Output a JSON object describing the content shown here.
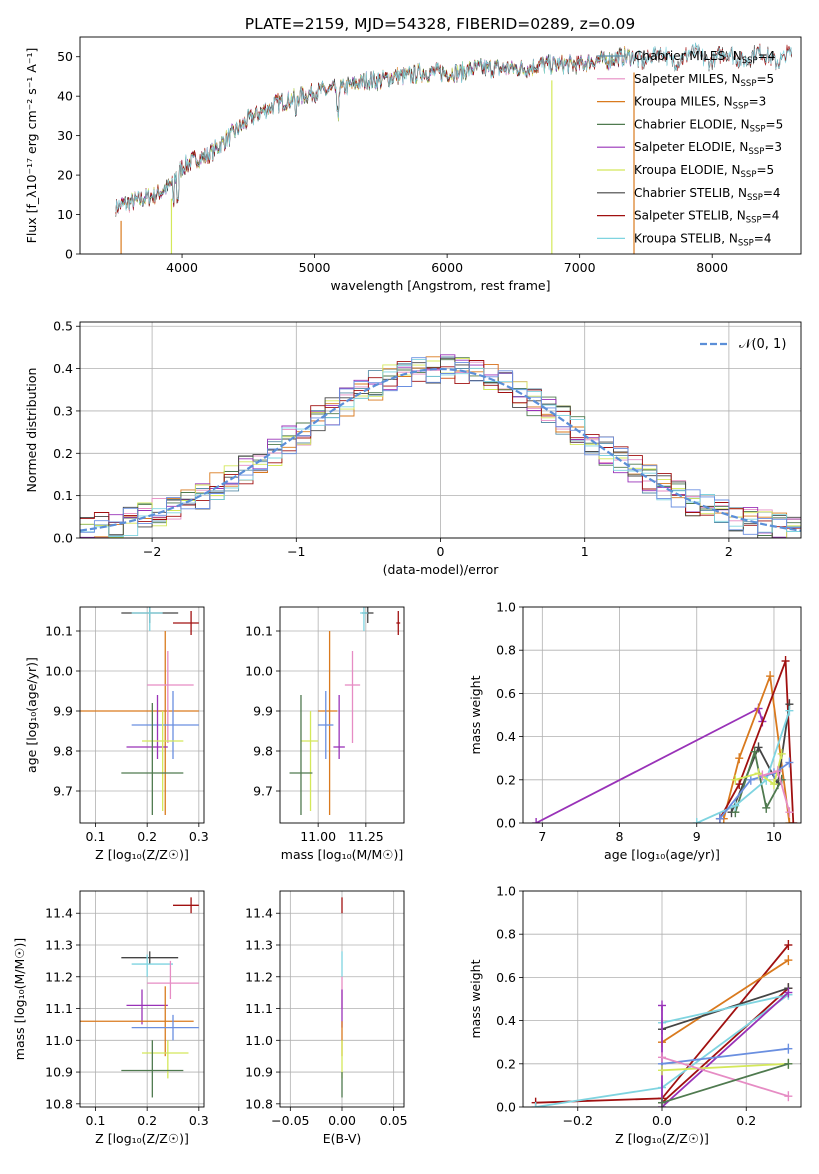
{
  "figure_title": "PLATE=2159, MJD=54328, FIBERID=0289, z=0.09",
  "colors": {
    "c1": "#5b8fa8",
    "c2": "#e68cc4",
    "c3": "#d97a1e",
    "c4": "#4f7a4f",
    "c5": "#9932b8",
    "c6": "#d4e85a",
    "c7": "#444444",
    "c8": "#a01010",
    "c9": "#7fd4e0",
    "c10": "#6a8fe0",
    "gauss": "#5b8fd8"
  },
  "chart_data": [
    {
      "id": "spectrum",
      "type": "line",
      "xlabel": "wavelength [Angstrom, rest frame]",
      "ylabel": "Flux [f_λ10⁻¹⁷ erg cm⁻² s⁻¹ A⁻¹]",
      "xlim": [
        3230,
        8670
      ],
      "ylim": [
        0,
        55
      ],
      "xticks": [
        4000,
        5000,
        6000,
        7000,
        8000
      ],
      "yticks": [
        0,
        10,
        20,
        30,
        40,
        50
      ],
      "grid": false,
      "legend_position": "top-right",
      "continuum": {
        "x": [
          3500,
          3600,
          3700,
          3800,
          3900,
          4000,
          4100,
          4200,
          4300,
          4400,
          4500,
          4600,
          4700,
          4800,
          4900,
          5000,
          5100,
          5200,
          5300,
          5400,
          5500,
          5600,
          5700,
          5800,
          5900,
          6000,
          6100,
          6200,
          6300,
          6400,
          6500,
          6600,
          6700,
          6800,
          6900,
          7000,
          7100,
          7200,
          7300,
          7400
        ],
        "y": [
          12,
          13,
          14,
          15,
          17,
          22,
          24,
          25,
          28,
          31,
          34,
          36,
          38,
          39,
          40,
          41,
          41.5,
          42,
          43,
          44,
          44,
          45,
          45,
          46,
          46,
          46,
          46,
          47,
          47,
          47,
          47,
          47,
          48,
          48,
          48,
          48,
          49,
          49,
          50,
          50
        ]
      },
      "series": [
        {
          "name": "Chabrier MILES, N_SSP=4",
          "color_key": "c1"
        },
        {
          "name": "Salpeter MILES, N_SSP=5",
          "color_key": "c2"
        },
        {
          "name": "Kroupa MILES, N_SSP=3",
          "color_key": "c3"
        },
        {
          "name": "Chabrier ELODIE, N_SSP=5",
          "color_key": "c4"
        },
        {
          "name": "Salpeter ELODIE, N_SSP=3",
          "color_key": "c5"
        },
        {
          "name": "Kroupa ELODIE, N_SSP=5",
          "color_key": "c6"
        },
        {
          "name": "Chabrier STELIB, N_SSP=4",
          "color_key": "c7"
        },
        {
          "name": "Salpeter STELIB, N_SSP=4",
          "color_key": "c8"
        },
        {
          "name": "Kroupa STELIB, N_SSP=4",
          "color_key": "c9"
        }
      ]
    },
    {
      "id": "residuals",
      "type": "bar",
      "xlabel": "(data-model)/error",
      "ylabel": "Normed distribution",
      "xlim": [
        -2.5,
        2.5
      ],
      "ylim": [
        0,
        0.51
      ],
      "xticks": [
        -2,
        -1,
        0,
        1,
        2
      ],
      "xtick_labels": [
        "−2",
        "−1",
        "0",
        "1",
        "2"
      ],
      "yticks": [
        0.0,
        0.1,
        0.2,
        0.3,
        0.4,
        0.5
      ],
      "ytick_labels": [
        "0.0",
        "0.1",
        "0.2",
        "0.3",
        "0.4",
        "0.5"
      ],
      "grid": true,
      "legend_position": "top-right",
      "legend_label": "𝒩(0, 1)",
      "bin_width": 0.1,
      "series_colors": [
        "c1",
        "c2",
        "c3",
        "c4",
        "c5",
        "c6",
        "c7",
        "c8",
        "c9",
        "c10"
      ]
    },
    {
      "id": "age_vs_Z",
      "type": "scatter",
      "xlabel": "Z [log₁₀(Z/Z☉)]",
      "ylabel": "age  [log₁₀(age/yr)]",
      "xlim": [
        0.07,
        0.31
      ],
      "ylim": [
        9.62,
        10.16
      ],
      "xticks": [
        0.1,
        0.2,
        0.3
      ],
      "xtick_labels": [
        "0.1",
        "0.2",
        "0.3"
      ],
      "yticks": [
        9.7,
        9.8,
        9.9,
        10.0,
        10.1
      ],
      "ytick_labels": [
        "9.7",
        "9.8",
        "9.9",
        "10.0",
        "10.1"
      ],
      "grid": true,
      "points": [
        {
          "x": 0.205,
          "y": 10.145,
          "xerr": [
            0.15,
            0.26
          ],
          "yerr": [
            10.12,
            10.16
          ],
          "c": "c7"
        },
        {
          "x": 0.205,
          "y": 10.145,
          "xerr": [
            0.17,
            0.23
          ],
          "yerr": [
            10.1,
            10.16
          ],
          "c": "c9"
        },
        {
          "x": 0.285,
          "y": 10.12,
          "xerr": [
            0.25,
            0.3
          ],
          "yerr": [
            10.09,
            10.15
          ],
          "c": "c8"
        },
        {
          "x": 0.235,
          "y": 9.9,
          "xerr": [
            0.07,
            0.3
          ],
          "yerr": [
            9.64,
            10.1
          ],
          "c": "c3"
        },
        {
          "x": 0.24,
          "y": 9.965,
          "xerr": [
            0.2,
            0.29
          ],
          "yerr": [
            9.82,
            10.05
          ],
          "c": "c2"
        },
        {
          "x": 0.25,
          "y": 9.865,
          "xerr": [
            0.17,
            0.3
          ],
          "yerr": [
            9.78,
            9.95
          ],
          "c": "c10"
        },
        {
          "x": 0.22,
          "y": 9.81,
          "xerr": [
            0.16,
            0.24
          ],
          "yerr": [
            9.78,
            9.94
          ],
          "c": "c5"
        },
        {
          "x": 0.23,
          "y": 9.825,
          "xerr": [
            0.19,
            0.27
          ],
          "yerr": [
            9.65,
            9.9
          ],
          "c": "c6"
        },
        {
          "x": 0.21,
          "y": 9.745,
          "xerr": [
            0.15,
            0.27
          ],
          "yerr": [
            9.64,
            9.92
          ],
          "c": "c4"
        }
      ]
    },
    {
      "id": "age_vs_mass",
      "type": "scatter",
      "xlabel": "mass [log₁₀(M/M☉)]",
      "ylabel": "",
      "xlim": [
        10.8,
        11.45
      ],
      "ylim": [
        9.62,
        10.16
      ],
      "xticks": [
        11.0,
        11.25
      ],
      "xtick_labels": [
        "11.00",
        "11.25"
      ],
      "yticks": [
        9.7,
        9.8,
        9.9,
        10.0,
        10.1
      ],
      "ytick_labels": [
        "9.7",
        "9.8",
        "9.9",
        "10.0",
        "10.1"
      ],
      "grid": true,
      "points": [
        {
          "x": 11.26,
          "y": 10.145,
          "xerr": [
            11.23,
            11.29
          ],
          "yerr": [
            10.12,
            10.16
          ],
          "c": "c7"
        },
        {
          "x": 11.24,
          "y": 10.145,
          "xerr": [
            11.22,
            11.26
          ],
          "yerr": [
            10.1,
            10.16
          ],
          "c": "c9"
        },
        {
          "x": 11.42,
          "y": 10.12,
          "xerr": [
            11.41,
            11.43
          ],
          "yerr": [
            10.09,
            10.15
          ],
          "c": "c8"
        },
        {
          "x": 11.06,
          "y": 9.9,
          "xerr": [
            11.0,
            11.1
          ],
          "yerr": [
            9.64,
            10.1
          ],
          "c": "c3"
        },
        {
          "x": 11.18,
          "y": 9.965,
          "xerr": [
            11.14,
            11.22
          ],
          "yerr": [
            9.82,
            10.05
          ],
          "c": "c2"
        },
        {
          "x": 11.04,
          "y": 9.865,
          "xerr": [
            11.0,
            11.08
          ],
          "yerr": [
            9.78,
            9.95
          ],
          "c": "c10"
        },
        {
          "x": 11.11,
          "y": 9.81,
          "xerr": [
            11.08,
            11.14
          ],
          "yerr": [
            9.78,
            9.94
          ],
          "c": "c5"
        },
        {
          "x": 10.96,
          "y": 9.825,
          "xerr": [
            10.91,
            11.0
          ],
          "yerr": [
            9.65,
            9.9
          ],
          "c": "c6"
        },
        {
          "x": 10.91,
          "y": 9.745,
          "xerr": [
            10.85,
            10.97
          ],
          "yerr": [
            9.64,
            9.94
          ],
          "c": "c4"
        }
      ]
    },
    {
      "id": "weight_vs_age",
      "type": "line",
      "xlabel": "age  [log₁₀(age/yr)]",
      "ylabel": "mass weight",
      "xlim": [
        6.75,
        10.35
      ],
      "ylim": [
        0,
        1.0
      ],
      "xticks": [
        7,
        8,
        9,
        10
      ],
      "xtick_labels": [
        "7",
        "8",
        "9",
        "10"
      ],
      "yticks": [
        0.0,
        0.2,
        0.4,
        0.6,
        0.8,
        1.0
      ],
      "ytick_labels": [
        "0.0",
        "0.2",
        "0.4",
        "0.6",
        "0.8",
        "1.0"
      ],
      "grid": true,
      "series": [
        {
          "c": "c5",
          "x": [
            6.92,
            9.8,
            9.85
          ],
          "y": [
            0.0,
            0.53,
            0.47
          ]
        },
        {
          "c": "c3",
          "x": [
            9.35,
            9.55,
            9.95,
            10.2
          ],
          "y": [
            0.02,
            0.3,
            0.68,
            0.0
          ]
        },
        {
          "c": "c8",
          "x": [
            9.3,
            9.55,
            10.15,
            10.25
          ],
          "y": [
            0.02,
            0.18,
            0.75,
            0.0
          ]
        },
        {
          "c": "c7",
          "x": [
            9.45,
            9.8,
            10.05,
            10.2
          ],
          "y": [
            0.05,
            0.35,
            0.18,
            0.55
          ]
        },
        {
          "c": "c4",
          "x": [
            9.5,
            9.75,
            9.9,
            10.1
          ],
          "y": [
            0.05,
            0.33,
            0.07,
            0.2
          ]
        },
        {
          "c": "c9",
          "x": [
            9.0,
            9.5,
            9.9,
            10.2
          ],
          "y": [
            0.0,
            0.08,
            0.2,
            0.52
          ]
        },
        {
          "c": "c10",
          "x": [
            9.3,
            9.7,
            10.0,
            10.2
          ],
          "y": [
            0.02,
            0.2,
            0.23,
            0.28
          ]
        },
        {
          "c": "c6",
          "x": [
            9.5,
            9.8,
            10.0,
            10.1
          ],
          "y": [
            0.2,
            0.23,
            0.18,
            0.32
          ]
        },
        {
          "c": "c2",
          "x": [
            9.85,
            10.05,
            10.2
          ],
          "y": [
            0.22,
            0.24,
            0.05
          ]
        }
      ]
    },
    {
      "id": "mass_vs_Z",
      "type": "scatter",
      "xlabel": "Z [log₁₀(Z/Z☉)]",
      "ylabel": "mass [log₁₀(M/M☉)]",
      "xlim": [
        0.07,
        0.31
      ],
      "ylim": [
        10.79,
        11.47
      ],
      "xticks": [
        0.1,
        0.2,
        0.3
      ],
      "xtick_labels": [
        "0.1",
        "0.2",
        "0.3"
      ],
      "yticks": [
        10.8,
        10.9,
        11.0,
        11.1,
        11.2,
        11.3,
        11.4
      ],
      "ytick_labels": [
        "10.8",
        "10.9",
        "11.0",
        "11.1",
        "11.2",
        "11.3",
        "11.4"
      ],
      "grid": true,
      "points": [
        {
          "x": 0.285,
          "y": 11.425,
          "xerr": [
            0.25,
            0.3
          ],
          "yerr": [
            11.4,
            11.45
          ],
          "c": "c8"
        },
        {
          "x": 0.205,
          "y": 11.26,
          "xerr": [
            0.15,
            0.26
          ],
          "yerr": [
            11.24,
            11.28
          ],
          "c": "c7"
        },
        {
          "x": 0.2,
          "y": 11.24,
          "xerr": [
            0.17,
            0.25
          ],
          "yerr": [
            11.2,
            11.27
          ],
          "c": "c9"
        },
        {
          "x": 0.245,
          "y": 11.18,
          "xerr": [
            0.2,
            0.3
          ],
          "yerr": [
            11.13,
            11.25
          ],
          "c": "c2"
        },
        {
          "x": 0.19,
          "y": 11.11,
          "xerr": [
            0.16,
            0.24
          ],
          "yerr": [
            11.05,
            11.16
          ],
          "c": "c5"
        },
        {
          "x": 0.235,
          "y": 11.06,
          "xerr": [
            0.07,
            0.29
          ],
          "yerr": [
            10.95,
            11.17
          ],
          "c": "c3"
        },
        {
          "x": 0.25,
          "y": 11.04,
          "xerr": [
            0.17,
            0.3
          ],
          "yerr": [
            11.0,
            11.08
          ],
          "c": "c10"
        },
        {
          "x": 0.24,
          "y": 10.96,
          "xerr": [
            0.19,
            0.28
          ],
          "yerr": [
            10.88,
            11.0
          ],
          "c": "c6"
        },
        {
          "x": 0.21,
          "y": 10.905,
          "xerr": [
            0.15,
            0.27
          ],
          "yerr": [
            10.82,
            11.0
          ],
          "c": "c4"
        }
      ]
    },
    {
      "id": "mass_vs_ebv",
      "type": "scatter",
      "xlabel": "E(B-V)",
      "ylabel": "",
      "xlim": [
        -0.06,
        0.06
      ],
      "ylim": [
        10.79,
        11.47
      ],
      "xticks": [
        -0.05,
        0.0,
        0.05
      ],
      "xtick_labels": [
        "−0.05",
        "0.00",
        "0.05"
      ],
      "yticks": [
        10.8,
        10.9,
        11.0,
        11.1,
        11.2,
        11.3,
        11.4
      ],
      "ytick_labels": [
        "10.8",
        "10.9",
        "11.0",
        "11.1",
        "11.2",
        "11.3",
        "11.4"
      ],
      "grid": true,
      "points": [
        {
          "x": 0,
          "y": 11.425,
          "xerr": [
            0,
            0
          ],
          "yerr": [
            11.4,
            11.45
          ],
          "c": "c8"
        },
        {
          "x": 0,
          "y": 11.25,
          "xerr": [
            0,
            0
          ],
          "yerr": [
            11.2,
            11.28
          ],
          "c": "c9"
        },
        {
          "x": 0,
          "y": 11.15,
          "xerr": [
            0,
            0
          ],
          "yerr": [
            11.1,
            11.2
          ],
          "c": "c2"
        },
        {
          "x": 0,
          "y": 11.1,
          "xerr": [
            0,
            0
          ],
          "yerr": [
            11.04,
            11.16
          ],
          "c": "c5"
        },
        {
          "x": 0,
          "y": 11.0,
          "xerr": [
            0,
            0
          ],
          "yerr": [
            10.95,
            11.06
          ],
          "c": "c3"
        },
        {
          "x": 0,
          "y": 10.95,
          "xerr": [
            0,
            0
          ],
          "yerr": [
            10.88,
            11.0
          ],
          "c": "c6"
        },
        {
          "x": 0,
          "y": 10.85,
          "xerr": [
            0,
            0
          ],
          "yerr": [
            10.82,
            10.9
          ],
          "c": "c4"
        }
      ]
    },
    {
      "id": "weight_vs_Z",
      "type": "line",
      "xlabel": "Z [log₁₀(Z/Z☉)]",
      "ylabel": "mass weight",
      "xlim": [
        -0.33,
        0.33
      ],
      "ylim": [
        0,
        1.0
      ],
      "xticks": [
        -0.2,
        0.0,
        0.2
      ],
      "xtick_labels": [
        "−0.2",
        "0.0",
        "0.2"
      ],
      "yticks": [
        0.0,
        0.2,
        0.4,
        0.6,
        0.8,
        1.0
      ],
      "ytick_labels": [
        "0.0",
        "0.2",
        "0.4",
        "0.6",
        "0.8",
        "1.0"
      ],
      "grid": true,
      "series": [
        {
          "c": "c8",
          "x": [
            -0.3,
            0.0,
            0.3
          ],
          "y": [
            0.02,
            0.04,
            0.75
          ]
        },
        {
          "c": "c8",
          "x": [
            0.0,
            0.3
          ],
          "y": [
            0.02,
            0.55
          ]
        },
        {
          "c": "c3",
          "x": [
            0.0,
            0.3
          ],
          "y": [
            0.3,
            0.68
          ]
        },
        {
          "c": "c7",
          "x": [
            0.0,
            0.3
          ],
          "y": [
            0.36,
            0.55
          ]
        },
        {
          "c": "c9",
          "x": [
            -0.3,
            0.0,
            0.3
          ],
          "y": [
            0.0,
            0.09,
            0.52
          ]
        },
        {
          "c": "c9",
          "x": [
            0.0,
            0.3
          ],
          "y": [
            0.39,
            0.52
          ]
        },
        {
          "c": "c5",
          "x": [
            0.0,
            0.0,
            0.3
          ],
          "y": [
            0.47,
            0.0,
            0.53
          ]
        },
        {
          "c": "c10",
          "x": [
            0.0,
            0.3
          ],
          "y": [
            0.2,
            0.27
          ]
        },
        {
          "c": "c6",
          "x": [
            0.0,
            0.3
          ],
          "y": [
            0.17,
            0.2
          ]
        },
        {
          "c": "c2",
          "x": [
            0.0,
            0.3
          ],
          "y": [
            0.23,
            0.05
          ]
        },
        {
          "c": "c4",
          "x": [
            0.0,
            0.3
          ],
          "y": [
            0.02,
            0.2
          ]
        }
      ]
    }
  ]
}
